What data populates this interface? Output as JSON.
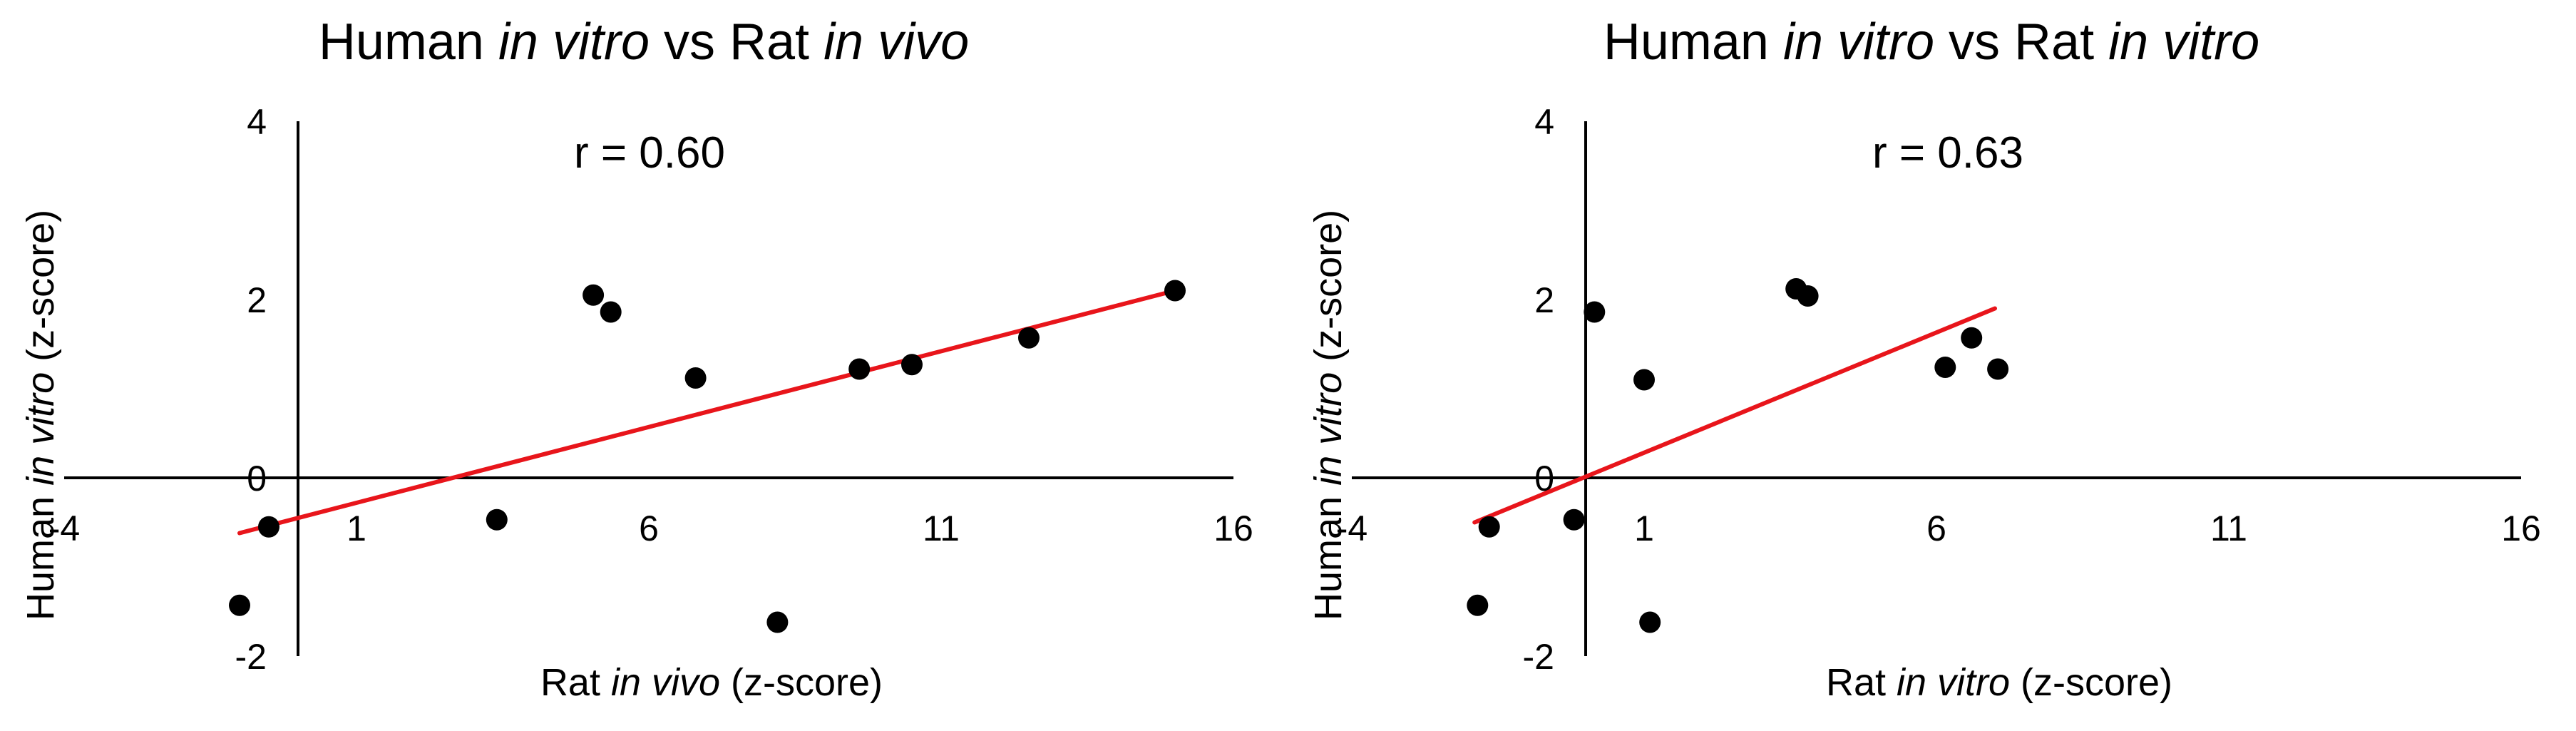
{
  "chart_data": [
    {
      "type": "scatter",
      "title": {
        "p1": "Human ",
        "p2": "in vitro",
        "p3": " vs Rat ",
        "p4": "in vivo"
      },
      "annotation": "r = 0.60",
      "xlabel": {
        "p1": "Rat ",
        "p2": "in vivo",
        "p3": " (z-score)"
      },
      "ylabel": {
        "p1": "Human ",
        "p2": "in vitro",
        "p3": " (z-score)"
      },
      "xlim": [
        -4,
        16
      ],
      "ylim": [
        -2,
        4
      ],
      "xticks": [
        "-4",
        "1",
        "6",
        "11",
        "16"
      ],
      "yticks": [
        "-2",
        "0",
        "2",
        "4"
      ],
      "points": [
        {
          "x": -1.0,
          "y": -1.43
        },
        {
          "x": -0.5,
          "y": -0.55
        },
        {
          "x": 3.4,
          "y": -0.47
        },
        {
          "x": 5.05,
          "y": 2.05
        },
        {
          "x": 5.35,
          "y": 1.86
        },
        {
          "x": 6.8,
          "y": 1.12
        },
        {
          "x": 8.2,
          "y": -1.62
        },
        {
          "x": 9.6,
          "y": 1.22
        },
        {
          "x": 10.5,
          "y": 1.27
        },
        {
          "x": 12.5,
          "y": 1.57
        },
        {
          "x": 15.0,
          "y": 2.1
        }
      ],
      "trendline": {
        "x": [
          -1.0,
          15.0
        ],
        "y": [
          -0.62,
          2.1
        ]
      },
      "trendline_color": "#e8151b",
      "point_color": "#000000"
    },
    {
      "type": "scatter",
      "title": {
        "p1": "Human ",
        "p2": "in vitro",
        "p3": " vs Rat ",
        "p4": "in vitro"
      },
      "annotation": "r = 0.63",
      "xlabel": {
        "p1": "Rat ",
        "p2": "in vitro",
        "p3": " (z-score)"
      },
      "ylabel": {
        "p1": "Human ",
        "p2": "in vitro",
        "p3": " (z-score)"
      },
      "xlim": [
        -4,
        16
      ],
      "ylim": [
        -2,
        4
      ],
      "xticks": [
        "-4",
        "1",
        "6",
        "11",
        "16"
      ],
      "yticks": [
        "-2",
        "0",
        "2",
        "4"
      ],
      "points": [
        {
          "x": -1.85,
          "y": -1.43
        },
        {
          "x": -1.65,
          "y": -0.55
        },
        {
          "x": -0.2,
          "y": -0.47
        },
        {
          "x": 0.15,
          "y": 1.86
        },
        {
          "x": 1.0,
          "y": 1.1
        },
        {
          "x": 1.1,
          "y": -1.62
        },
        {
          "x": 3.6,
          "y": 2.12
        },
        {
          "x": 3.8,
          "y": 2.04
        },
        {
          "x": 6.15,
          "y": 1.24
        },
        {
          "x": 6.6,
          "y": 1.57
        },
        {
          "x": 7.05,
          "y": 1.22
        }
      ],
      "trendline": {
        "x": [
          -1.9,
          7.0
        ],
        "y": [
          -0.5,
          1.9
        ]
      },
      "trendline_color": "#e8151b",
      "point_color": "#000000"
    }
  ]
}
